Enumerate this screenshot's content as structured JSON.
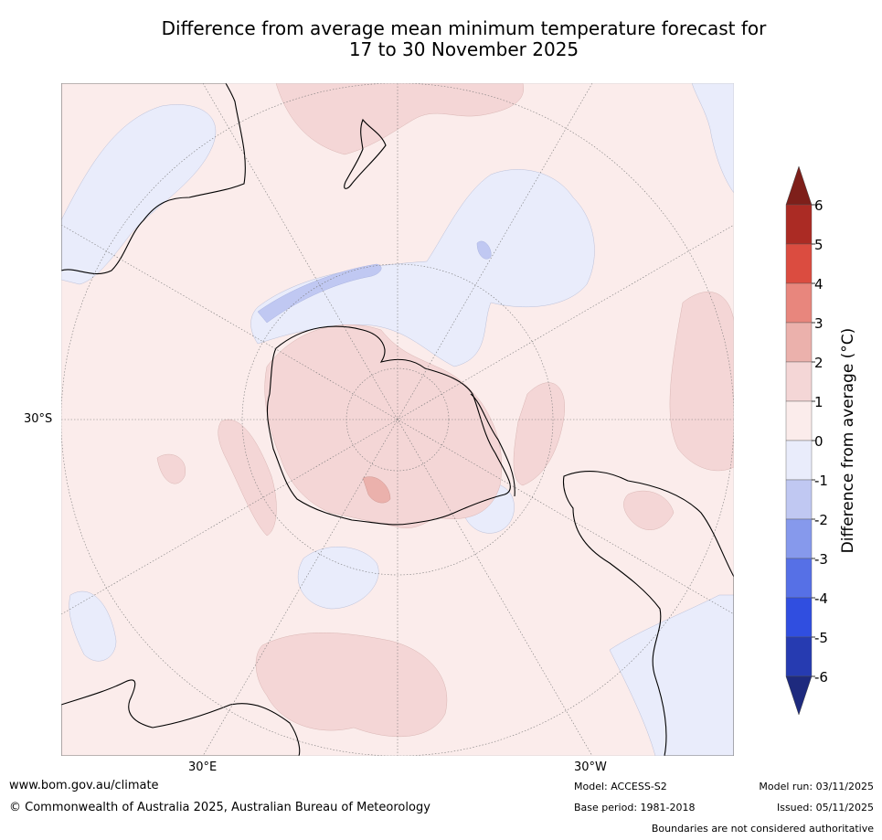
{
  "title": {
    "line1": "Difference from average mean minimum temperature forecast for",
    "line2": "17 to 30 November 2025"
  },
  "map": {
    "projection": "south-polar-stereographic",
    "lat_label": "30°S",
    "lon_labels": {
      "east": "30°E",
      "west": "30°W"
    },
    "colors": {
      "ocean_base": "#fbeceb",
      "warm_0_1": "#fbeceb",
      "warm_1_2": "#f4d6d6",
      "warm_2_3": "#ebb1ac",
      "cool_0_1": "#e9ecfb",
      "cool_1_2": "#c0c8f2",
      "coast": "#000000",
      "grid": "#7a7a7a"
    }
  },
  "colorbar": {
    "title": "Difference from average (°C)",
    "ticks": [
      "6",
      "5",
      "4",
      "3",
      "2",
      "1",
      "0",
      "-1",
      "-2",
      "-3",
      "-4",
      "-5",
      "-6"
    ],
    "bins": [
      {
        "range": "5 to 6",
        "color": "#ab2b24"
      },
      {
        "range": "4 to 5",
        "color": "#db4c40"
      },
      {
        "range": "3 to 4",
        "color": "#e8867d"
      },
      {
        "range": "2 to 3",
        "color": "#ebb1ac"
      },
      {
        "range": "1 to 2",
        "color": "#f4d6d6"
      },
      {
        "range": "0 to 1",
        "color": "#fbeceb"
      },
      {
        "range": "-1 to 0",
        "color": "#e9ecfb"
      },
      {
        "range": "-2 to -1",
        "color": "#c0c8f2"
      },
      {
        "range": "-3 to -2",
        "color": "#8699ec"
      },
      {
        "range": "-4 to -3",
        "color": "#5670e6"
      },
      {
        "range": "-5 to -4",
        "color": "#304ee0"
      },
      {
        "range": "-6 to -5",
        "color": "#263bb1"
      }
    ],
    "over_color": "#7e1f1a",
    "under_color": "#1e2a7e"
  },
  "footer": {
    "website": "www.bom.gov.au/climate",
    "copyright": "© Commonwealth of Australia 2025, Australian Bureau of Meteorology",
    "model": "Model: ACCESS-S2",
    "base_period": "Base period: 1981-2018",
    "model_run": "Model run: 03/11/2025",
    "issued": "Issued: 05/11/2025",
    "boundaries": "Boundaries are not considered authoritative"
  }
}
